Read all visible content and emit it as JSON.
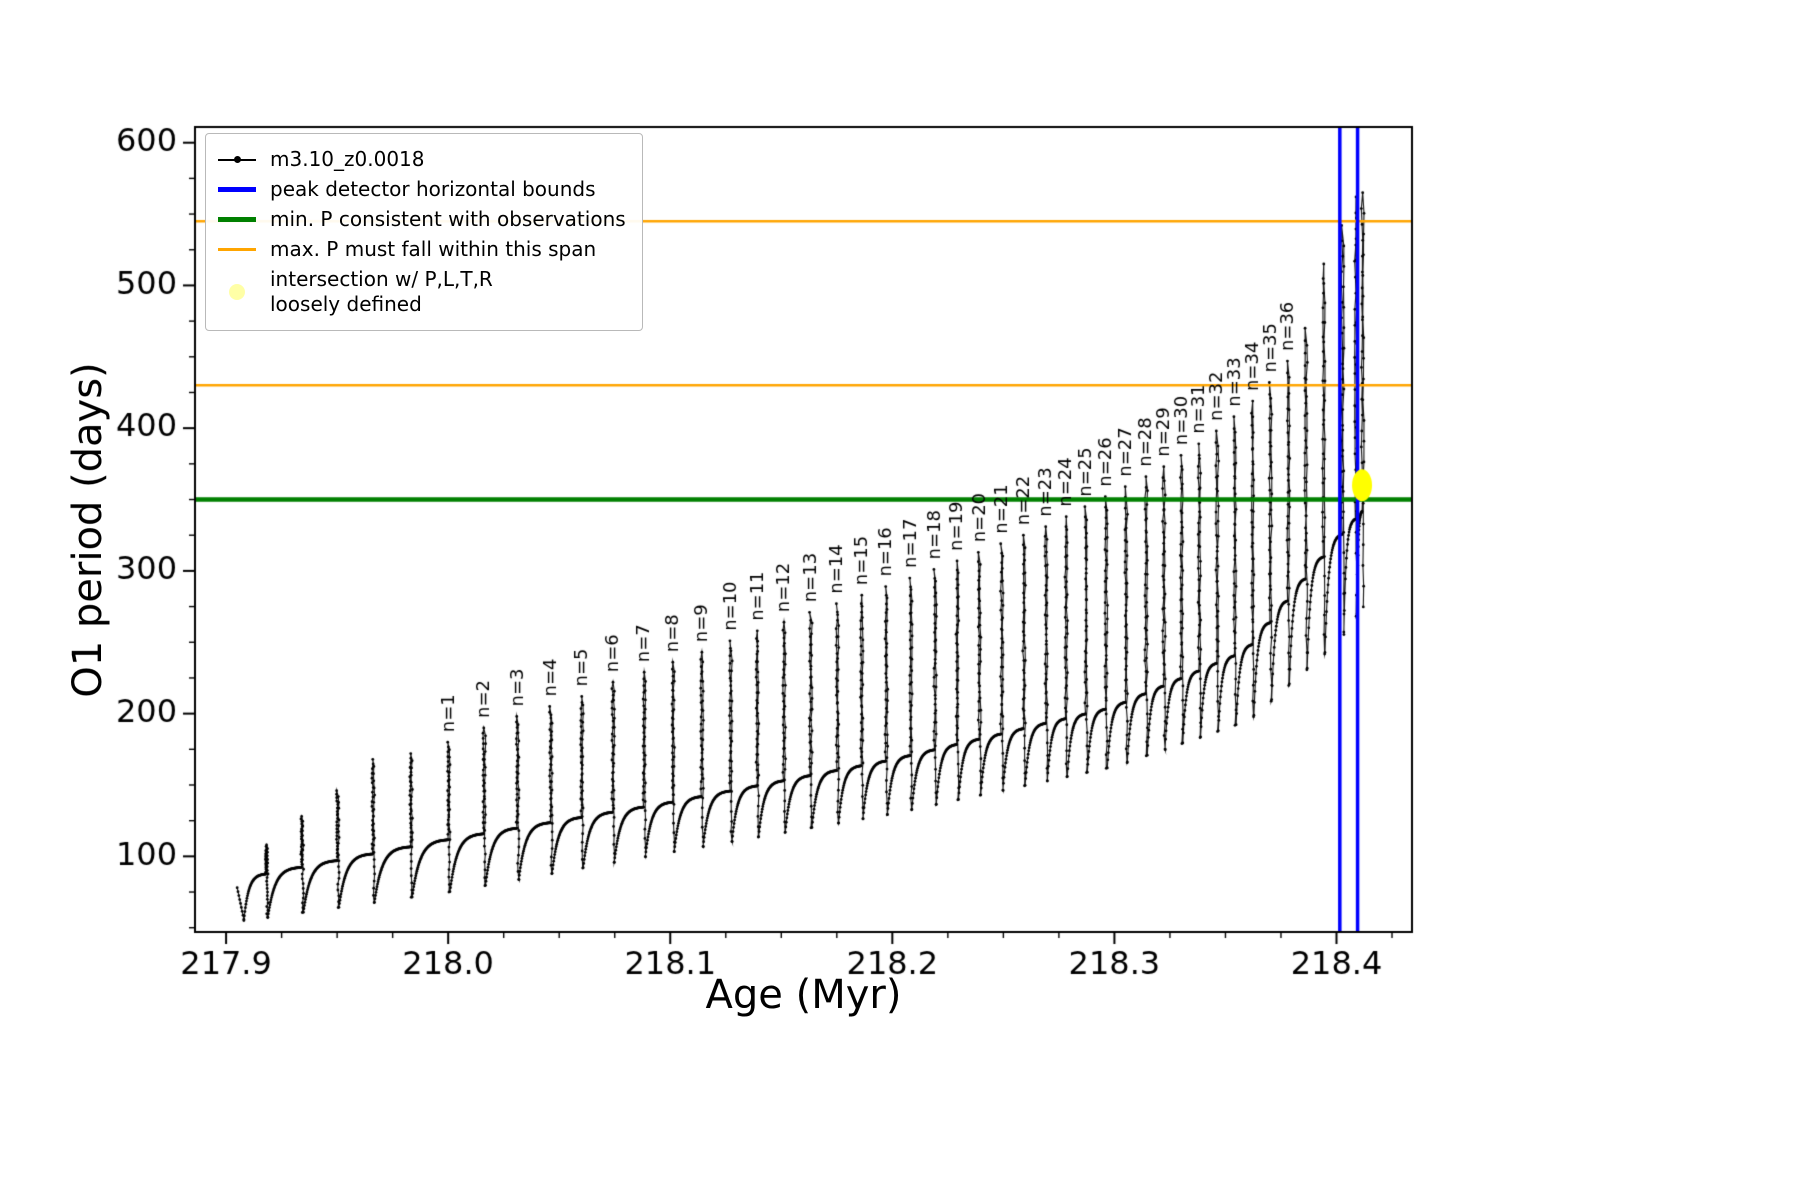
{
  "chart_data": {
    "type": "line",
    "title": "",
    "xlabel": "Age (Myr)",
    "ylabel": "O1 period (days)",
    "xlim": [
      217.886,
      218.434
    ],
    "ylim": [
      47,
      611
    ],
    "x_ticks": [
      217.9,
      218.0,
      218.1,
      218.2,
      218.3,
      218.4
    ],
    "x_tick_labels": [
      "217.9",
      "218.0",
      "218.1",
      "218.2",
      "218.3",
      "218.4"
    ],
    "x_minor_step": 0.025,
    "y_ticks": [
      100,
      200,
      300,
      400,
      500,
      600
    ],
    "y_tick_labels": [
      "100",
      "200",
      "300",
      "400",
      "500",
      "600"
    ],
    "y_minor_step": 25,
    "grid": false,
    "legend_position": "upper left",
    "series": {
      "name": "m3.10_z0.0018",
      "color": "#000000",
      "marker": "point",
      "linestyle": "solid"
    },
    "peak_bounds_vlines": {
      "label": "peak detector horizontal bounds",
      "color": "#0000ff",
      "x": [
        218.4015,
        218.4095
      ],
      "linewidth": 3.5
    },
    "min_p_hline": {
      "label": "min. P consistent with observations",
      "color": "#008000",
      "y": 350,
      "linewidth": 4.5
    },
    "max_p_hlines": {
      "label": "max. P must fall within this span",
      "color": "#ffa500",
      "y": [
        430,
        545
      ],
      "linewidth": 2.5
    },
    "intersection": {
      "label": "intersection w/ P,L,T,R loosely defined",
      "color": "#ffff00",
      "x": 218.4115,
      "y": 360
    },
    "legend": {
      "entries": [
        {
          "label": "m3.10_z0.0018",
          "color": "#000000",
          "marker": "line-dot"
        },
        {
          "label": "peak detector horizontal bounds",
          "color": "#0000ff",
          "marker": "thick-line"
        },
        {
          "label": "min. P consistent with observations",
          "color": "#008000",
          "marker": "thick-line"
        },
        {
          "label": "max. P must fall within this span",
          "color": "#ffa500",
          "marker": "line"
        },
        {
          "label": "intersection w/ P,L,T,R",
          "label2": "loosely defined",
          "color": "#ffff00",
          "marker": "pale-dot"
        }
      ]
    },
    "spikes_format": [
      "age_myr",
      "peak_period_days",
      "n_label"
    ],
    "spikes": [
      [
        217.918,
        108,
        null
      ],
      [
        217.934,
        128,
        null
      ],
      [
        217.95,
        146,
        null
      ],
      [
        217.966,
        168,
        null
      ],
      [
        217.983,
        172,
        null
      ],
      [
        218.0,
        180,
        1
      ],
      [
        218.016,
        190,
        2
      ],
      [
        218.031,
        198,
        3
      ],
      [
        218.046,
        205,
        4
      ],
      [
        218.06,
        212,
        5
      ],
      [
        218.074,
        222,
        6
      ],
      [
        218.088,
        229,
        7
      ],
      [
        218.101,
        236,
        8
      ],
      [
        218.114,
        243,
        9
      ],
      [
        218.127,
        251,
        10
      ],
      [
        218.139,
        258,
        11
      ],
      [
        218.151,
        264,
        12
      ],
      [
        218.163,
        271,
        13
      ],
      [
        218.175,
        277,
        14
      ],
      [
        218.186,
        283,
        15
      ],
      [
        218.197,
        289,
        16
      ],
      [
        218.208,
        295,
        17
      ],
      [
        218.219,
        301,
        18
      ],
      [
        218.229,
        307,
        19
      ],
      [
        218.239,
        313,
        20
      ],
      [
        218.249,
        319,
        21
      ],
      [
        218.259,
        325,
        22
      ],
      [
        218.269,
        331,
        23
      ],
      [
        218.278,
        338,
        24
      ],
      [
        218.287,
        345,
        25
      ],
      [
        218.296,
        352,
        26
      ],
      [
        218.305,
        359,
        27
      ],
      [
        218.314,
        366,
        28
      ],
      [
        218.322,
        373,
        29
      ],
      [
        218.33,
        381,
        30
      ],
      [
        218.338,
        389,
        31
      ],
      [
        218.346,
        398,
        32
      ],
      [
        218.354,
        408,
        33
      ],
      [
        218.362,
        419,
        34
      ],
      [
        218.37,
        432,
        35
      ],
      [
        218.378,
        447,
        36
      ],
      [
        218.386,
        470,
        null
      ],
      [
        218.394,
        515,
        null
      ],
      [
        218.4025,
        542,
        null
      ],
      [
        218.4085,
        562,
        null
      ],
      [
        218.4115,
        565,
        null
      ]
    ],
    "baseline_anchors": {
      "x": [
        217.908,
        218.0,
        218.1,
        218.2,
        218.3,
        218.36,
        218.4,
        218.413
      ],
      "dip": [
        55,
        75,
        103,
        130,
        163,
        195,
        250,
        278
      ],
      "plateau": [
        85,
        112,
        138,
        168,
        205,
        245,
        322,
        345
      ]
    }
  }
}
